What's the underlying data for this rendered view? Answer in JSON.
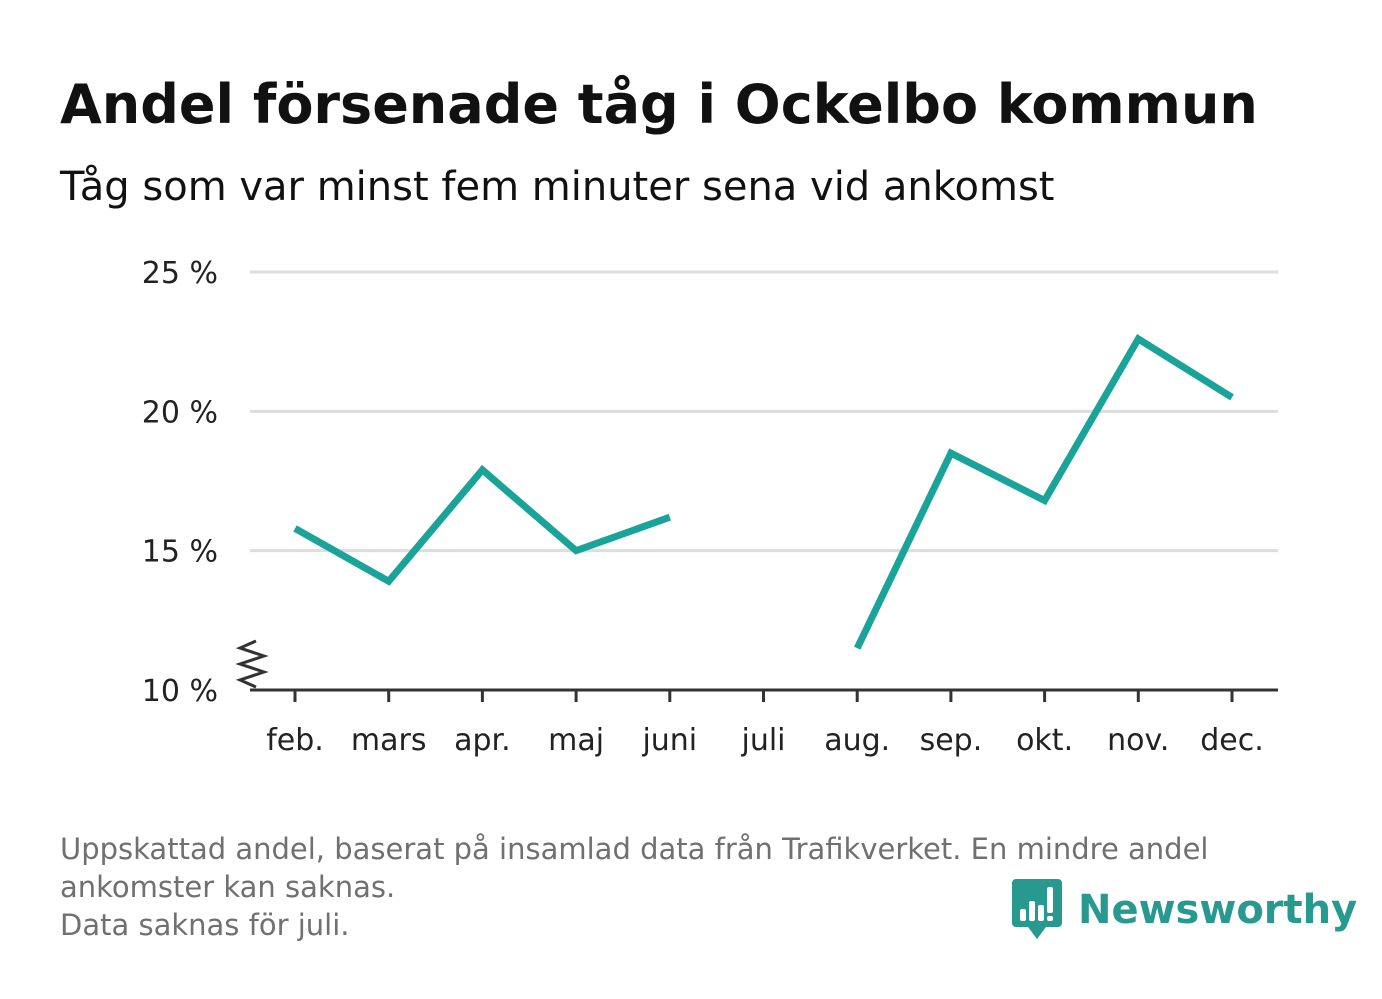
{
  "title": "Andel försenade tåg i Ockelbo kommun",
  "subtitle": "Tåg som var minst fem minuter sena vid ankomst",
  "notes": [
    "Uppskattad andel, baserat på insamlad data från Trafikverket. En mindre andel",
    "ankomster kan saknas.",
    "Data saknas för juli."
  ],
  "brand": {
    "name": "Newsworthy",
    "icon": "newsworthy-bar-chart-logo",
    "color": "#28998f"
  },
  "colors": {
    "line": "#1aa399",
    "grid": "#dddddd",
    "axis": "#333333"
  },
  "chart_data": {
    "type": "line",
    "title": "Andel försenade tåg i Ockelbo kommun",
    "subtitle": "Tåg som var minst fem minuter sena vid ankomst",
    "xlabel": "",
    "ylabel": "",
    "categories": [
      "feb.",
      "mars",
      "apr.",
      "maj",
      "juni",
      "juli",
      "aug.",
      "sep.",
      "okt.",
      "nov.",
      "dec."
    ],
    "series": [
      {
        "values": [
          15.8,
          13.9,
          17.9,
          15.0,
          16.2,
          null,
          11.5,
          18.5,
          16.8,
          22.6,
          20.5
        ]
      }
    ],
    "ylim": [
      10,
      25
    ],
    "yticks": [
      10,
      15,
      20,
      25
    ],
    "ytick_labels": [
      "10 %",
      "15 %",
      "20 %",
      "25 %"
    ],
    "axis_break": true,
    "grid": true,
    "legend": "none"
  }
}
